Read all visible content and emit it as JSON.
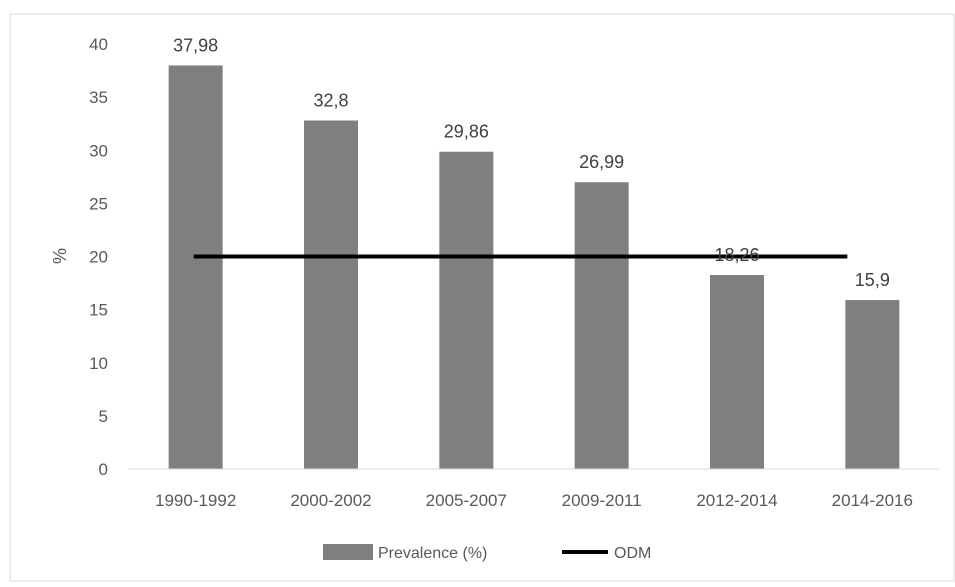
{
  "chart_data": {
    "type": "bar",
    "title": "",
    "xlabel": "",
    "ylabel": "%",
    "ylim": [
      0,
      40
    ],
    "yticks": [
      0,
      5,
      10,
      15,
      20,
      25,
      30,
      35,
      40
    ],
    "grid": false,
    "legend_position": "bottom",
    "categories": [
      "1990-1992",
      "2000-2002",
      "2005-2007",
      "2009-2011",
      "2012-2014",
      "2014-2016"
    ],
    "series": [
      {
        "name": "Prevalence (%)",
        "type": "bar",
        "color": "#7f7f7f",
        "values": [
          37.98,
          32.8,
          29.86,
          26.99,
          18.26,
          15.9
        ],
        "data_labels": [
          "37,98",
          "32,8",
          "29,86",
          "26,99",
          "18,26",
          "15,9"
        ]
      },
      {
        "name": "ODM",
        "type": "line",
        "color": "#000000",
        "values": [
          20,
          20,
          20,
          20,
          20,
          20
        ]
      }
    ]
  }
}
